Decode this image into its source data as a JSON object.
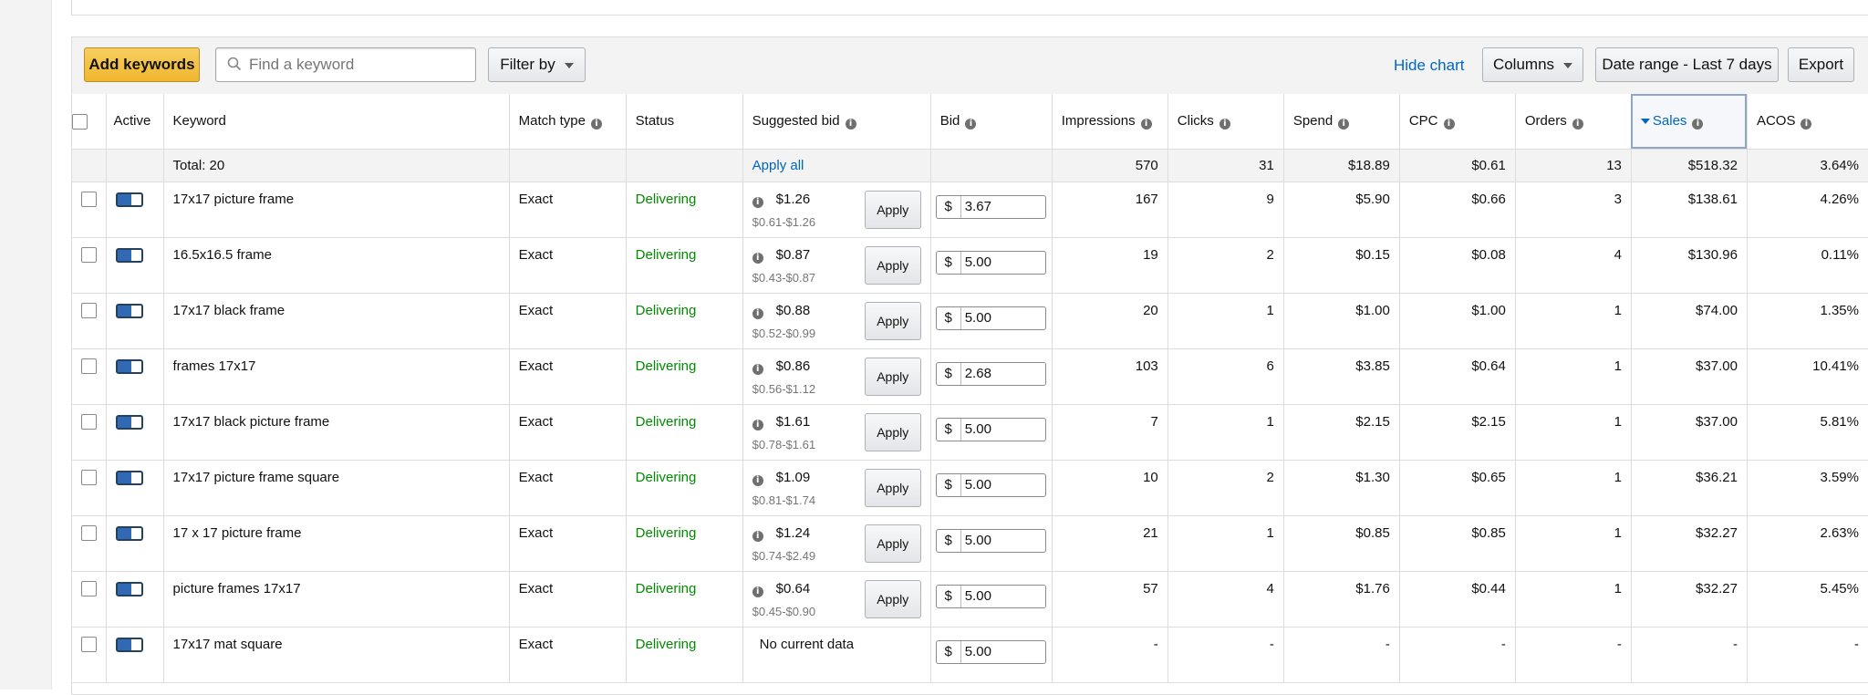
{
  "toolbar": {
    "add_keywords": "Add keywords",
    "search_placeholder": "Find a keyword",
    "filter_by": "Filter by",
    "hide_chart": "Hide chart",
    "columns": "Columns",
    "date_range": "Date range - Last 7 days",
    "export": "Export"
  },
  "table": {
    "headers": {
      "active": "Active",
      "keyword": "Keyword",
      "match_type": "Match type",
      "status": "Status",
      "suggested_bid": "Suggested bid",
      "bid": "Bid",
      "impressions": "Impressions",
      "clicks": "Clicks",
      "spend": "Spend",
      "cpc": "CPC",
      "orders": "Orders",
      "sales": "Sales",
      "acos": "ACOS"
    },
    "sorted_by": "Sales",
    "currency_symbol": "$",
    "total": {
      "label": "Total: 20",
      "apply_all": "Apply all",
      "impressions": "570",
      "clicks": "31",
      "spend": "$18.89",
      "cpc": "$0.61",
      "orders": "13",
      "sales": "$518.32",
      "acos": "3.64%"
    },
    "rows": [
      {
        "keyword": "17x17 picture frame",
        "match_type": "Exact",
        "status": "Delivering",
        "suggested_bid": "$1.26",
        "bid_range": "$0.61-$1.26",
        "apply": "Apply",
        "bid": "3.67",
        "impressions": "167",
        "clicks": "9",
        "spend": "$5.90",
        "cpc": "$0.66",
        "orders": "3",
        "sales": "$138.61",
        "acos": "4.26%"
      },
      {
        "keyword": "16.5x16.5 frame",
        "match_type": "Exact",
        "status": "Delivering",
        "suggested_bid": "$0.87",
        "bid_range": "$0.43-$0.87",
        "apply": "Apply",
        "bid": "5.00",
        "impressions": "19",
        "clicks": "2",
        "spend": "$0.15",
        "cpc": "$0.08",
        "orders": "4",
        "sales": "$130.96",
        "acos": "0.11%"
      },
      {
        "keyword": "17x17 black frame",
        "match_type": "Exact",
        "status": "Delivering",
        "suggested_bid": "$0.88",
        "bid_range": "$0.52-$0.99",
        "apply": "Apply",
        "bid": "5.00",
        "impressions": "20",
        "clicks": "1",
        "spend": "$1.00",
        "cpc": "$1.00",
        "orders": "1",
        "sales": "$74.00",
        "acos": "1.35%"
      },
      {
        "keyword": "frames 17x17",
        "match_type": "Exact",
        "status": "Delivering",
        "suggested_bid": "$0.86",
        "bid_range": "$0.56-$1.12",
        "apply": "Apply",
        "bid": "2.68",
        "impressions": "103",
        "clicks": "6",
        "spend": "$3.85",
        "cpc": "$0.64",
        "orders": "1",
        "sales": "$37.00",
        "acos": "10.41%"
      },
      {
        "keyword": "17x17 black picture frame",
        "match_type": "Exact",
        "status": "Delivering",
        "suggested_bid": "$1.61",
        "bid_range": "$0.78-$1.61",
        "apply": "Apply",
        "bid": "5.00",
        "impressions": "7",
        "clicks": "1",
        "spend": "$2.15",
        "cpc": "$2.15",
        "orders": "1",
        "sales": "$37.00",
        "acos": "5.81%"
      },
      {
        "keyword": "17x17 picture frame square",
        "match_type": "Exact",
        "status": "Delivering",
        "suggested_bid": "$1.09",
        "bid_range": "$0.81-$1.74",
        "apply": "Apply",
        "bid": "5.00",
        "impressions": "10",
        "clicks": "2",
        "spend": "$1.30",
        "cpc": "$0.65",
        "orders": "1",
        "sales": "$36.21",
        "acos": "3.59%"
      },
      {
        "keyword": "17 x 17 picture frame",
        "match_type": "Exact",
        "status": "Delivering",
        "suggested_bid": "$1.24",
        "bid_range": "$0.74-$2.49",
        "apply": "Apply",
        "bid": "5.00",
        "impressions": "21",
        "clicks": "1",
        "spend": "$0.85",
        "cpc": "$0.85",
        "orders": "1",
        "sales": "$32.27",
        "acos": "2.63%"
      },
      {
        "keyword": "picture frames 17x17",
        "match_type": "Exact",
        "status": "Delivering",
        "suggested_bid": "$0.64",
        "bid_range": "$0.45-$0.90",
        "apply": "Apply",
        "bid": "5.00",
        "impressions": "57",
        "clicks": "4",
        "spend": "$1.76",
        "cpc": "$0.44",
        "orders": "1",
        "sales": "$32.27",
        "acos": "5.45%"
      },
      {
        "keyword": "17x17 mat square",
        "match_type": "Exact",
        "status": "Delivering",
        "no_data": "No current data",
        "bid": "5.00",
        "impressions": "-",
        "clicks": "-",
        "spend": "-",
        "cpc": "-",
        "orders": "-",
        "sales": "-",
        "acos": "-"
      }
    ]
  },
  "colors": {
    "primary_button": "#f0b62f",
    "link": "#0066c0",
    "status_green": "#008a00",
    "toggle_on": "#3169b4"
  }
}
